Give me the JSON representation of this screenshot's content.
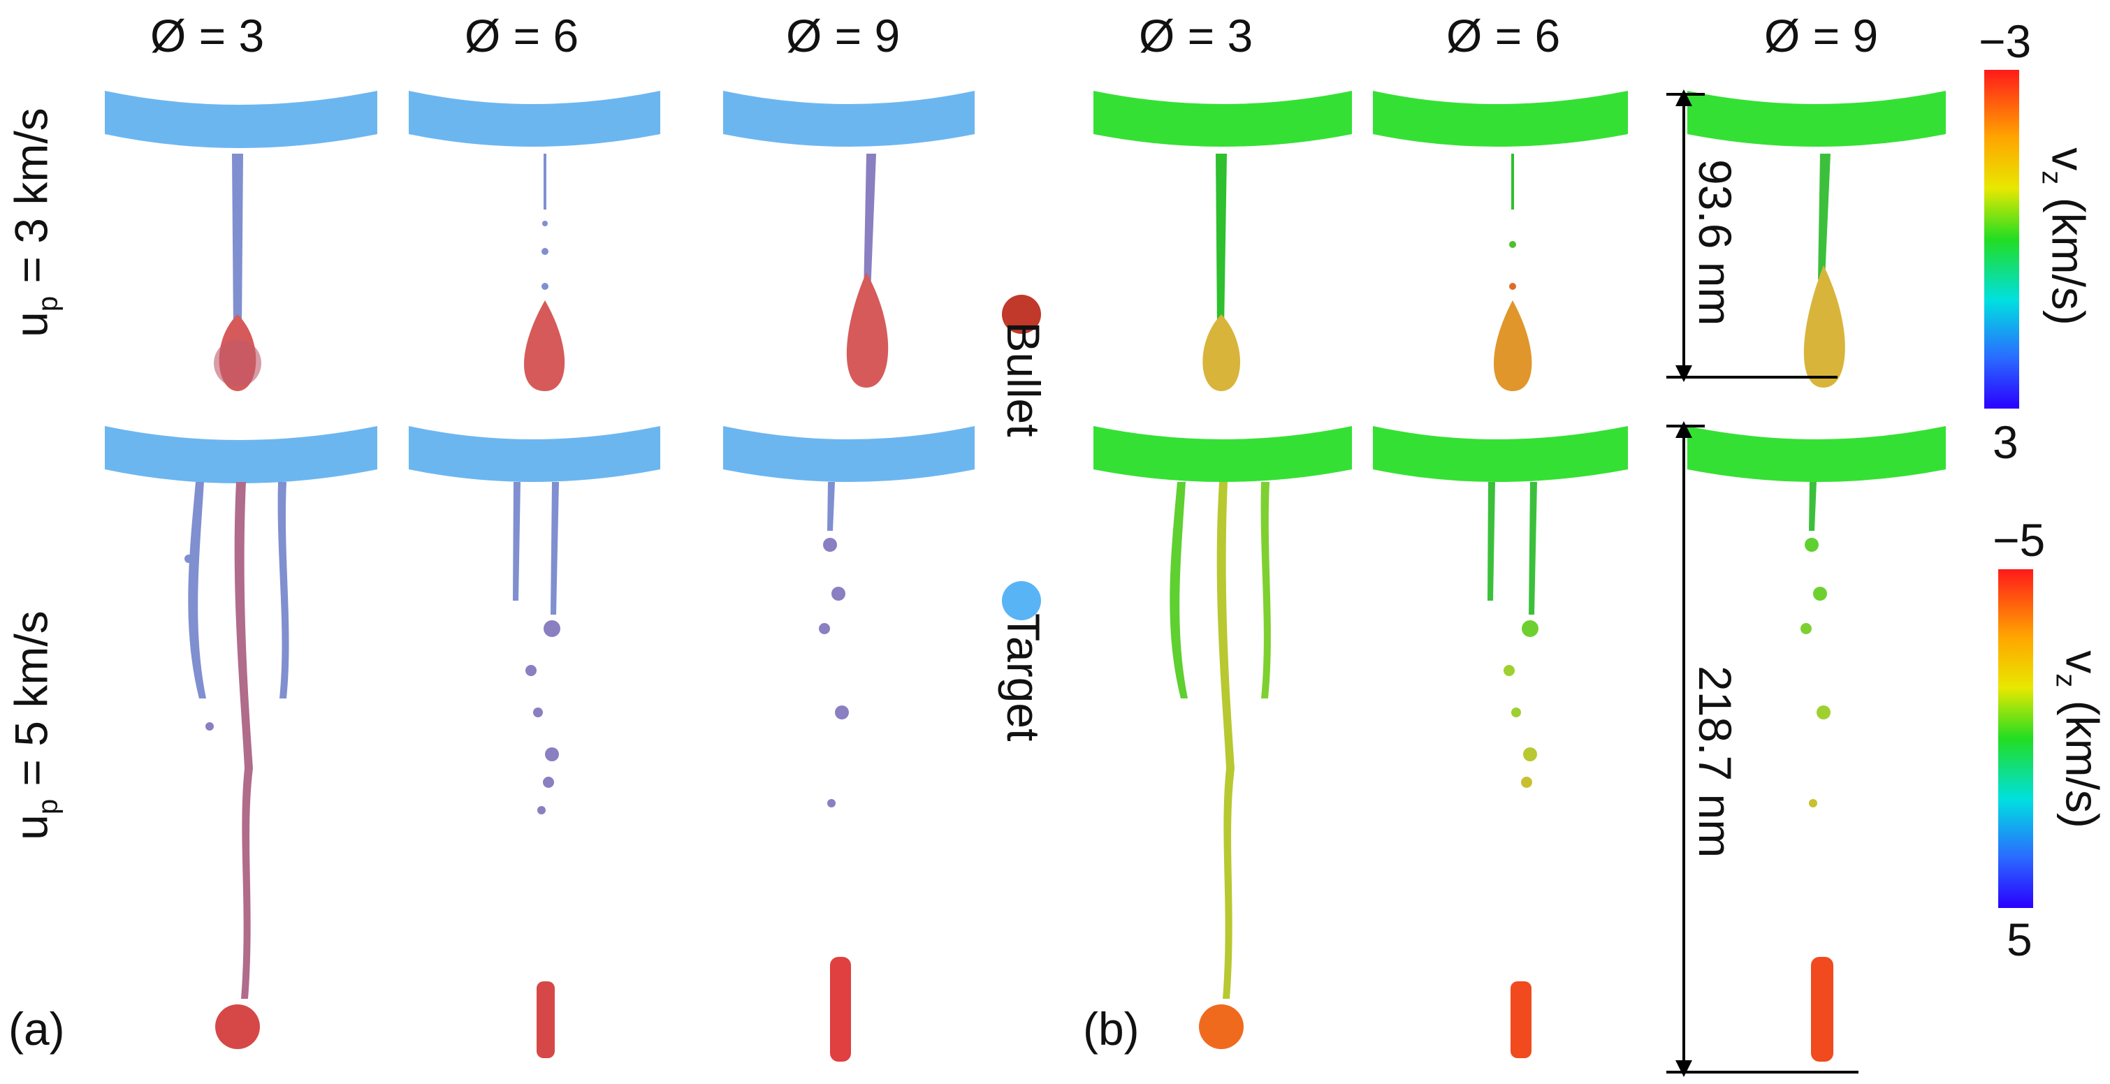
{
  "columns": {
    "left": [
      "Ø = 3",
      "Ø = 6",
      "Ø = 9"
    ],
    "right": [
      "Ø = 3",
      "Ø = 6",
      "Ø = 9"
    ]
  },
  "rows": {
    "top_base": "u",
    "top_sub": "p",
    "top_rest": " = 3 km/s",
    "bottom_base": "u",
    "bottom_sub": "p",
    "bottom_rest": " = 5 km/s"
  },
  "legend": {
    "bullet": "Bullet",
    "target": "Target",
    "bullet_color": "#c0392b",
    "target_color": "#59b4f5"
  },
  "panels": {
    "a": "(a)",
    "b": "(b)"
  },
  "dimensions": {
    "top": "93.6 nm",
    "bottom": "218.7 nm"
  },
  "colorbars": {
    "top": {
      "max_label": "−3",
      "min_label": "3",
      "title_base": "v",
      "title_sub": "z",
      "title_rest": " (km/s)"
    },
    "bottom": {
      "max_label": "−5",
      "min_label": "5",
      "title_base": "v",
      "title_sub": "z",
      "title_rest": " (km/s)"
    }
  },
  "colors": {
    "target_plate": "#6cb6f0",
    "velocity_plate": "#35e035",
    "bullet_red": "#d63a3a",
    "jet_blue": "#7f8fcf",
    "jet_yellow": "#c8d034",
    "jet_orange": "#f06a1e"
  }
}
